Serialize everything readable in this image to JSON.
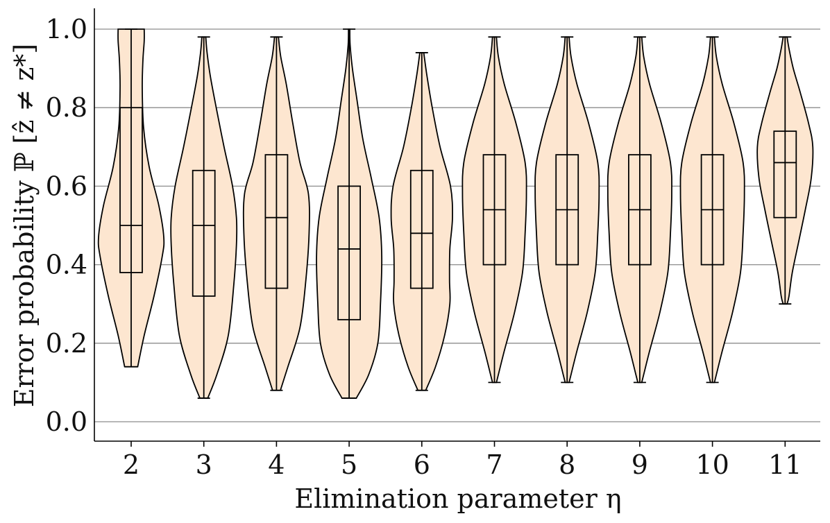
{
  "chart_data": {
    "type": "violin",
    "xlabel": "Elimination parameter η",
    "ylabel": "Error probability ℙ [ẑ ≠ z*]",
    "ylim": [
      -0.05,
      1.05
    ],
    "yticks": [
      "0.0",
      "0.2",
      "0.4",
      "0.6",
      "0.8",
      "1.0"
    ],
    "grid": "horizontal",
    "colors": {
      "violin_fill": "#fde6d0",
      "edge": "#000000",
      "grid": "#8c8c8c"
    },
    "categories": [
      "2",
      "3",
      "4",
      "5",
      "6",
      "7",
      "8",
      "9",
      "10",
      "11"
    ],
    "series": [
      {
        "category": "2",
        "min": 0.14,
        "q1": 0.38,
        "median": 0.5,
        "q3": 0.8,
        "max": 1.0,
        "density": [
          [
            0.14,
            0.2
          ],
          [
            0.22,
            0.4
          ],
          [
            0.32,
            0.7
          ],
          [
            0.42,
            0.95
          ],
          [
            0.47,
            1.0
          ],
          [
            0.55,
            0.85
          ],
          [
            0.65,
            0.55
          ],
          [
            0.75,
            0.38
          ],
          [
            0.85,
            0.34
          ],
          [
            0.92,
            0.36
          ],
          [
            0.97,
            0.4
          ],
          [
            1.0,
            0.4
          ]
        ]
      },
      {
        "category": "3",
        "min": 0.06,
        "q1": 0.32,
        "median": 0.5,
        "q3": 0.64,
        "max": 0.98,
        "density": [
          [
            0.06,
            0.12
          ],
          [
            0.12,
            0.4
          ],
          [
            0.22,
            0.75
          ],
          [
            0.35,
            0.92
          ],
          [
            0.45,
            1.0
          ],
          [
            0.52,
            1.0
          ],
          [
            0.6,
            0.88
          ],
          [
            0.7,
            0.62
          ],
          [
            0.8,
            0.38
          ],
          [
            0.88,
            0.2
          ],
          [
            0.94,
            0.1
          ],
          [
            0.98,
            0.06
          ]
        ]
      },
      {
        "category": "4",
        "min": 0.08,
        "q1": 0.34,
        "median": 0.52,
        "q3": 0.68,
        "max": 0.98,
        "density": [
          [
            0.08,
            0.12
          ],
          [
            0.14,
            0.35
          ],
          [
            0.24,
            0.72
          ],
          [
            0.36,
            0.9
          ],
          [
            0.48,
            1.0
          ],
          [
            0.58,
            0.98
          ],
          [
            0.66,
            0.72
          ],
          [
            0.76,
            0.5
          ],
          [
            0.86,
            0.3
          ],
          [
            0.93,
            0.13
          ],
          [
            0.98,
            0.06
          ]
        ]
      },
      {
        "category": "5",
        "min": 0.06,
        "q1": 0.26,
        "median": 0.44,
        "q3": 0.6,
        "max": 1.0,
        "density": [
          [
            0.06,
            0.22
          ],
          [
            0.12,
            0.6
          ],
          [
            0.2,
            0.88
          ],
          [
            0.3,
            0.96
          ],
          [
            0.42,
            1.0
          ],
          [
            0.52,
            0.92
          ],
          [
            0.62,
            0.68
          ],
          [
            0.72,
            0.42
          ],
          [
            0.82,
            0.24
          ],
          [
            0.9,
            0.1
          ],
          [
            0.96,
            0.03
          ],
          [
            1.0,
            0.02
          ]
        ]
      },
      {
        "category": "6",
        "min": 0.08,
        "q1": 0.34,
        "median": 0.48,
        "q3": 0.64,
        "max": 0.94,
        "density": [
          [
            0.08,
            0.12
          ],
          [
            0.14,
            0.42
          ],
          [
            0.22,
            0.7
          ],
          [
            0.3,
            0.86
          ],
          [
            0.36,
            0.85
          ],
          [
            0.44,
            0.86
          ],
          [
            0.52,
            0.94
          ],
          [
            0.6,
            0.88
          ],
          [
            0.7,
            0.56
          ],
          [
            0.8,
            0.32
          ],
          [
            0.88,
            0.16
          ],
          [
            0.94,
            0.06
          ]
        ]
      },
      {
        "category": "7",
        "min": 0.1,
        "q1": 0.4,
        "median": 0.54,
        "q3": 0.68,
        "max": 0.98,
        "density": [
          [
            0.1,
            0.06
          ],
          [
            0.12,
            0.12
          ],
          [
            0.18,
            0.3
          ],
          [
            0.28,
            0.62
          ],
          [
            0.38,
            0.86
          ],
          [
            0.48,
            0.94
          ],
          [
            0.58,
            0.98
          ],
          [
            0.66,
            0.94
          ],
          [
            0.76,
            0.66
          ],
          [
            0.86,
            0.3
          ],
          [
            0.93,
            0.12
          ],
          [
            0.98,
            0.06
          ]
        ]
      },
      {
        "category": "8",
        "min": 0.1,
        "q1": 0.4,
        "median": 0.54,
        "q3": 0.68,
        "max": 0.98,
        "density": [
          [
            0.1,
            0.06
          ],
          [
            0.12,
            0.12
          ],
          [
            0.18,
            0.3
          ],
          [
            0.28,
            0.62
          ],
          [
            0.38,
            0.86
          ],
          [
            0.48,
            0.94
          ],
          [
            0.58,
            0.98
          ],
          [
            0.66,
            0.94
          ],
          [
            0.76,
            0.66
          ],
          [
            0.86,
            0.3
          ],
          [
            0.93,
            0.12
          ],
          [
            0.98,
            0.06
          ]
        ]
      },
      {
        "category": "9",
        "min": 0.1,
        "q1": 0.4,
        "median": 0.54,
        "q3": 0.68,
        "max": 0.98,
        "density": [
          [
            0.1,
            0.06
          ],
          [
            0.12,
            0.12
          ],
          [
            0.18,
            0.3
          ],
          [
            0.28,
            0.62
          ],
          [
            0.38,
            0.86
          ],
          [
            0.48,
            0.94
          ],
          [
            0.58,
            0.98
          ],
          [
            0.66,
            0.94
          ],
          [
            0.76,
            0.66
          ],
          [
            0.86,
            0.3
          ],
          [
            0.93,
            0.12
          ],
          [
            0.98,
            0.06
          ]
        ]
      },
      {
        "category": "10",
        "min": 0.1,
        "q1": 0.4,
        "median": 0.54,
        "q3": 0.68,
        "max": 0.98,
        "density": [
          [
            0.1,
            0.06
          ],
          [
            0.12,
            0.12
          ],
          [
            0.18,
            0.3
          ],
          [
            0.28,
            0.62
          ],
          [
            0.38,
            0.86
          ],
          [
            0.48,
            0.94
          ],
          [
            0.58,
            0.98
          ],
          [
            0.66,
            0.94
          ],
          [
            0.76,
            0.66
          ],
          [
            0.86,
            0.3
          ],
          [
            0.93,
            0.12
          ],
          [
            0.98,
            0.06
          ]
        ]
      },
      {
        "category": "11",
        "min": 0.3,
        "q1": 0.52,
        "median": 0.66,
        "q3": 0.74,
        "max": 0.98,
        "density": [
          [
            0.3,
            0.06
          ],
          [
            0.32,
            0.12
          ],
          [
            0.38,
            0.22
          ],
          [
            0.46,
            0.42
          ],
          [
            0.54,
            0.62
          ],
          [
            0.62,
            0.8
          ],
          [
            0.7,
            0.85
          ],
          [
            0.76,
            0.72
          ],
          [
            0.84,
            0.46
          ],
          [
            0.9,
            0.25
          ],
          [
            0.95,
            0.12
          ],
          [
            0.98,
            0.06
          ]
        ]
      }
    ]
  }
}
